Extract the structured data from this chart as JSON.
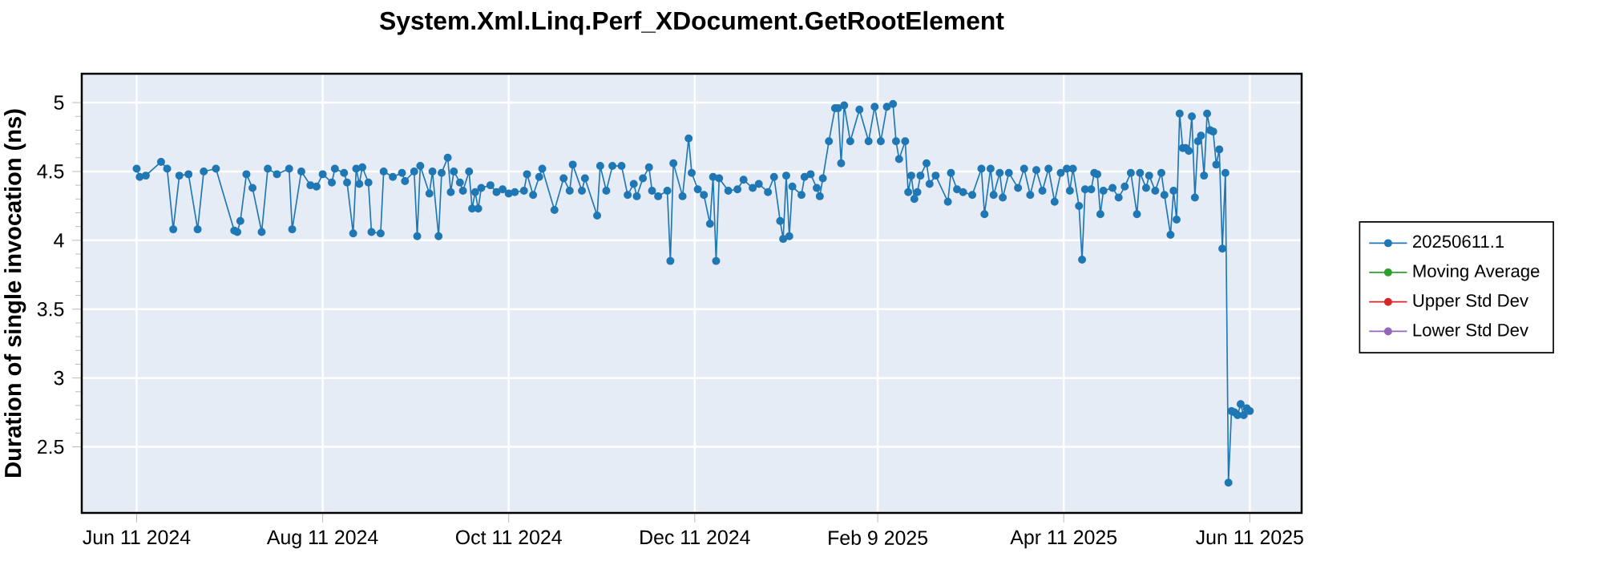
{
  "chart_data": {
    "type": "line",
    "title": "System.Xml.Linq.Perf_XDocument.GetRootElement",
    "ylabel": "Duration of single invocation (ns)",
    "xlim": [
      "2024-05-24",
      "2025-06-28"
    ],
    "ylim": [
      2.02,
      5.21
    ],
    "xticks": [
      {
        "value": "2024-06-11",
        "label": "Jun 11 2024"
      },
      {
        "value": "2024-08-11",
        "label": "Aug 11 2024"
      },
      {
        "value": "2024-10-11",
        "label": "Oct 11 2024"
      },
      {
        "value": "2024-12-11",
        "label": "Dec 11 2024"
      },
      {
        "value": "2025-02-09",
        "label": "Feb 9 2025"
      },
      {
        "value": "2025-04-11",
        "label": "Apr 11 2025"
      },
      {
        "value": "2025-06-11",
        "label": "Jun 11 2025"
      }
    ],
    "yticks": [
      2.5,
      3,
      3.5,
      4,
      4.5,
      5
    ],
    "grid": true,
    "legend": "right",
    "marker": "circle",
    "line_style": "solid",
    "series": [
      {
        "name": "20250611.1",
        "color": "#1f77b4",
        "x": [
          "2024-06-11",
          "2024-06-12",
          "2024-06-14",
          "2024-06-19",
          "2024-06-21",
          "2024-06-23",
          "2024-06-25",
          "2024-06-28",
          "2024-07-01",
          "2024-07-03",
          "2024-07-07",
          "2024-07-13",
          "2024-07-14",
          "2024-07-15",
          "2024-07-17",
          "2024-07-19",
          "2024-07-22",
          "2024-07-24",
          "2024-07-27",
          "2024-07-31",
          "2024-08-01",
          "2024-08-04",
          "2024-08-07",
          "2024-08-09",
          "2024-08-11",
          "2024-08-14",
          "2024-08-15",
          "2024-08-18",
          "2024-08-19",
          "2024-08-21",
          "2024-08-22",
          "2024-08-23",
          "2024-08-24",
          "2024-08-26",
          "2024-08-27",
          "2024-08-30",
          "2024-08-31",
          "2024-09-03",
          "2024-09-06",
          "2024-09-07",
          "2024-09-10",
          "2024-09-11",
          "2024-09-12",
          "2024-09-15",
          "2024-09-16",
          "2024-09-18",
          "2024-09-19",
          "2024-09-21",
          "2024-09-22",
          "2024-09-23",
          "2024-09-25",
          "2024-09-26",
          "2024-09-28",
          "2024-09-29",
          "2024-09-30",
          "2024-10-01",
          "2024-10-02",
          "2024-10-05",
          "2024-10-07",
          "2024-10-09",
          "2024-10-11",
          "2024-10-13",
          "2024-10-16",
          "2024-10-17",
          "2024-10-19",
          "2024-10-21",
          "2024-10-22",
          "2024-10-26",
          "2024-10-29",
          "2024-10-31",
          "2024-11-01",
          "2024-11-04",
          "2024-11-05",
          "2024-11-09",
          "2024-11-10",
          "2024-11-12",
          "2024-11-14",
          "2024-11-17",
          "2024-11-19",
          "2024-11-21",
          "2024-11-22",
          "2024-11-24",
          "2024-11-26",
          "2024-11-27",
          "2024-11-29",
          "2024-12-02",
          "2024-12-03",
          "2024-12-04",
          "2024-12-07",
          "2024-12-09",
          "2024-12-10",
          "2024-12-12",
          "2024-12-14",
          "2024-12-16",
          "2024-12-17",
          "2024-12-18",
          "2024-12-19",
          "2024-12-22",
          "2024-12-25",
          "2024-12-27",
          "2024-12-30",
          "2025-01-01",
          "2025-01-04",
          "2025-01-06",
          "2025-01-08",
          "2025-01-09",
          "2025-01-10",
          "2025-01-11",
          "2025-01-12",
          "2025-01-15",
          "2025-01-16",
          "2025-01-18",
          "2025-01-20",
          "2025-01-21",
          "2025-01-22",
          "2025-01-24",
          "2025-01-26",
          "2025-01-27",
          "2025-01-28",
          "2025-01-29",
          "2025-01-31",
          "2025-02-03",
          "2025-02-06",
          "2025-02-08",
          "2025-02-10",
          "2025-02-12",
          "2025-02-14",
          "2025-02-15",
          "2025-02-16",
          "2025-02-18",
          "2025-02-19",
          "2025-02-20",
          "2025-02-21",
          "2025-02-22",
          "2025-02-23",
          "2025-02-25",
          "2025-02-26",
          "2025-02-28",
          "2025-03-04",
          "2025-03-05",
          "2025-03-07",
          "2025-03-09",
          "2025-03-12",
          "2025-03-15",
          "2025-03-16",
          "2025-03-18",
          "2025-03-19",
          "2025-03-21",
          "2025-03-22",
          "2025-03-24",
          "2025-03-27",
          "2025-03-29",
          "2025-03-31",
          "2025-04-02",
          "2025-04-04",
          "2025-04-06",
          "2025-04-08",
          "2025-04-10",
          "2025-04-12",
          "2025-04-13",
          "2025-04-14",
          "2025-04-16",
          "2025-04-17",
          "2025-04-18",
          "2025-04-20",
          "2025-04-21",
          "2025-04-22",
          "2025-04-23",
          "2025-04-24",
          "2025-04-27",
          "2025-04-29",
          "2025-05-01",
          "2025-05-03",
          "2025-05-05",
          "2025-05-06",
          "2025-05-08",
          "2025-05-09",
          "2025-05-11",
          "2025-05-13",
          "2025-05-14",
          "2025-05-16",
          "2025-05-17",
          "2025-05-18",
          "2025-05-19",
          "2025-05-20",
          "2025-05-21",
          "2025-05-22",
          "2025-05-23",
          "2025-05-24",
          "2025-05-25",
          "2025-05-26",
          "2025-05-27",
          "2025-05-28",
          "2025-05-29",
          "2025-05-30",
          "2025-05-31",
          "2025-06-01",
          "2025-06-02",
          "2025-06-03",
          "2025-06-04",
          "2025-06-05",
          "2025-06-06",
          "2025-06-07",
          "2025-06-08",
          "2025-06-09",
          "2025-06-10",
          "2025-06-11"
        ],
        "values": [
          4.52,
          4.46,
          4.47,
          4.57,
          4.52,
          4.08,
          4.47,
          4.48,
          4.08,
          4.5,
          4.52,
          4.07,
          4.06,
          4.14,
          4.48,
          4.38,
          4.06,
          4.52,
          4.48,
          4.52,
          4.08,
          4.5,
          4.4,
          4.39,
          4.48,
          4.42,
          4.52,
          4.49,
          4.42,
          4.05,
          4.52,
          4.41,
          4.53,
          4.42,
          4.06,
          4.05,
          4.5,
          4.46,
          4.49,
          4.43,
          4.5,
          4.03,
          4.54,
          4.34,
          4.5,
          4.03,
          4.49,
          4.6,
          4.35,
          4.5,
          4.42,
          4.36,
          4.5,
          4.23,
          4.35,
          4.23,
          4.38,
          4.4,
          4.35,
          4.37,
          4.34,
          4.35,
          4.36,
          4.48,
          4.33,
          4.46,
          4.52,
          4.22,
          4.45,
          4.36,
          4.55,
          4.36,
          4.45,
          4.18,
          4.54,
          4.36,
          4.54,
          4.54,
          4.33,
          4.41,
          4.32,
          4.45,
          4.53,
          4.36,
          4.32,
          4.36,
          3.85,
          4.56,
          4.32,
          4.74,
          4.49,
          4.37,
          4.33,
          4.12,
          4.46,
          3.85,
          4.45,
          4.36,
          4.37,
          4.44,
          4.38,
          4.41,
          4.35,
          4.46,
          4.14,
          4.01,
          4.47,
          4.03,
          4.39,
          4.33,
          4.46,
          4.48,
          4.38,
          4.32,
          4.45,
          4.72,
          4.96,
          4.96,
          4.56,
          4.98,
          4.72,
          4.95,
          4.72,
          4.97,
          4.72,
          4.97,
          4.99,
          4.72,
          4.59,
          4.72,
          4.35,
          4.47,
          4.3,
          4.35,
          4.47,
          4.56,
          4.41,
          4.47,
          4.28,
          4.49,
          4.37,
          4.35,
          4.33,
          4.52,
          4.19,
          4.52,
          4.33,
          4.49,
          4.31,
          4.49,
          4.38,
          4.52,
          4.33,
          4.51,
          4.36,
          4.52,
          4.28,
          4.49,
          4.52,
          4.36,
          4.52,
          4.25,
          3.86,
          4.37,
          4.37,
          4.49,
          4.48,
          4.19,
          4.36,
          4.38,
          4.31,
          4.39,
          4.49,
          4.19,
          4.49,
          4.38,
          4.47,
          4.36,
          4.49,
          4.33,
          4.04,
          4.36,
          4.15,
          4.92,
          4.67,
          4.67,
          4.65,
          4.9,
          4.31,
          4.72,
          4.76,
          4.47,
          4.92,
          4.8,
          4.79,
          4.55,
          4.66,
          3.94,
          4.49,
          2.24,
          2.76,
          2.75,
          2.73,
          2.81,
          2.73,
          2.78,
          2.76
        ]
      },
      {
        "name": "Moving Average",
        "color": "#2ca02c"
      },
      {
        "name": "Upper Std Dev",
        "color": "#d62728"
      },
      {
        "name": "Lower Std Dev",
        "color": "#9467bd"
      }
    ]
  }
}
